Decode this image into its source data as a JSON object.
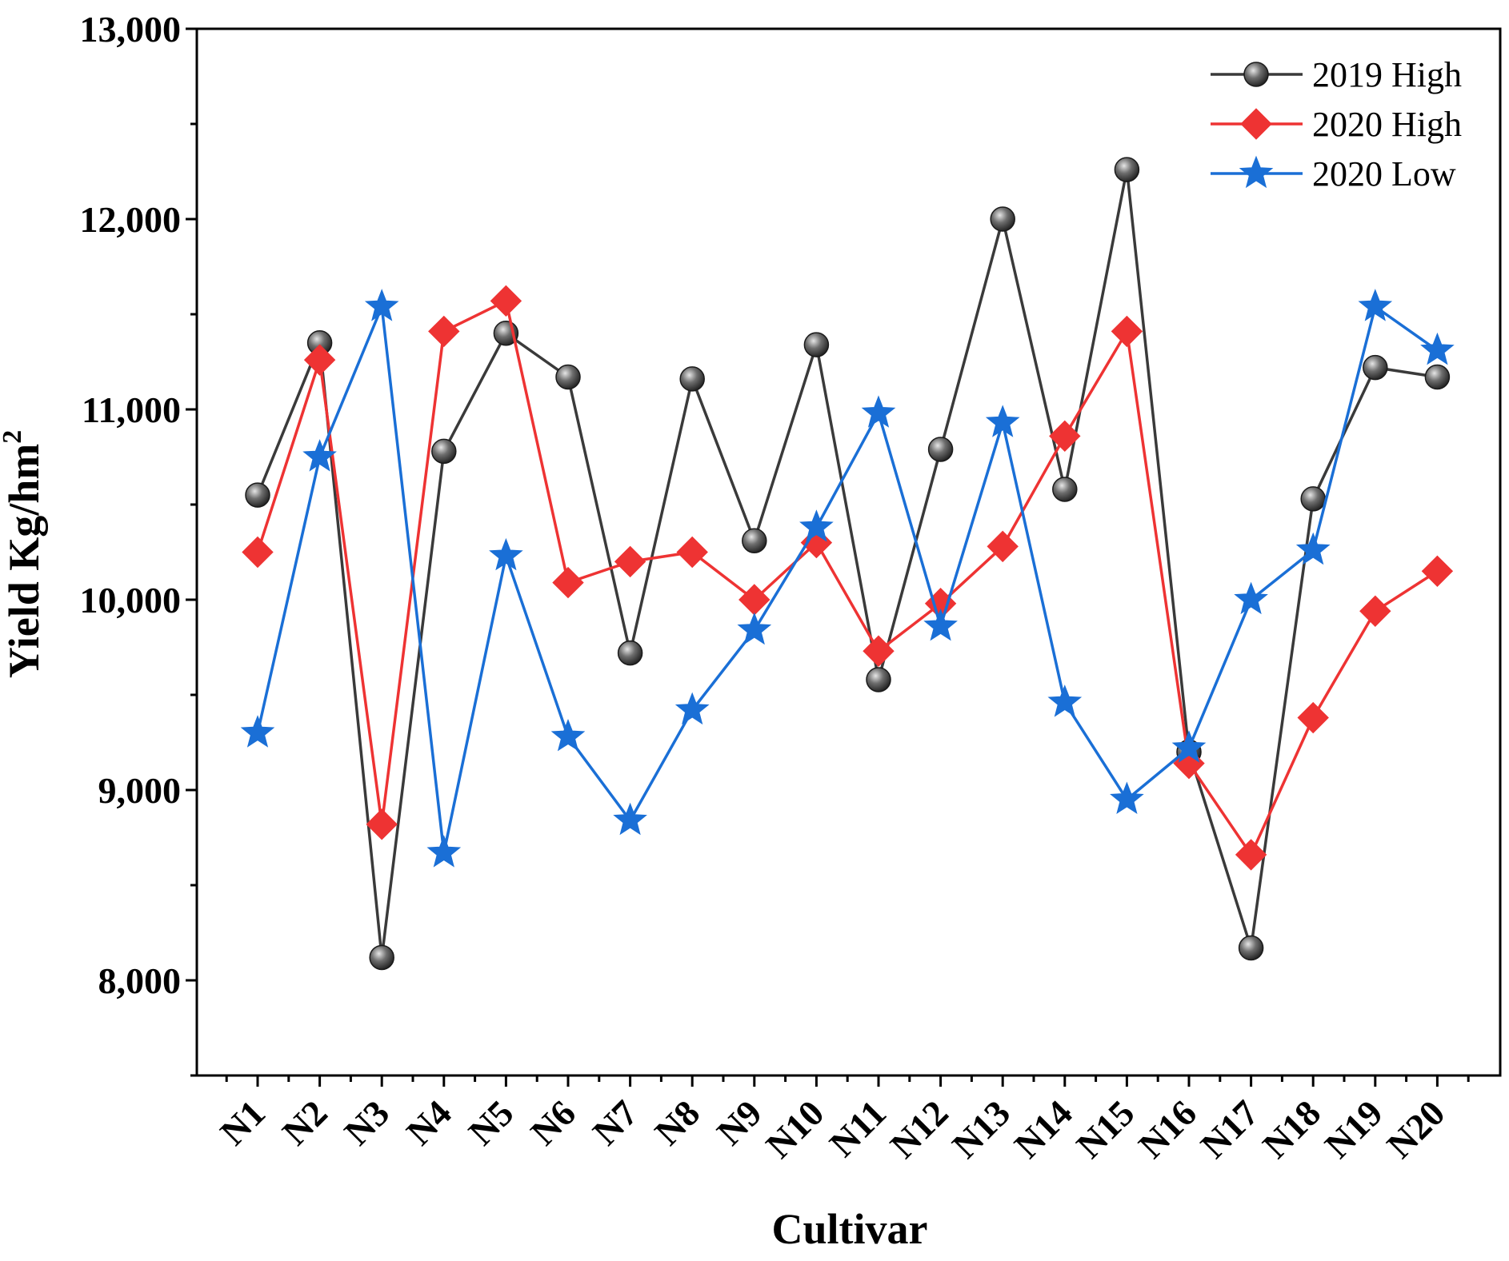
{
  "chart_data": {
    "type": "line",
    "title": "",
    "xlabel": "Cultivar",
    "ylabel_main": "Yield Kg/hm",
    "ylabel_sup": "2",
    "ylim": [
      7500,
      13000
    ],
    "yticks": [
      8000,
      9000,
      10000,
      11000,
      12000,
      13000
    ],
    "ytick_labels": [
      "8,000",
      "9,000",
      "10,000",
      "11,000",
      "12,000",
      "13,000"
    ],
    "categories": [
      "N1",
      "N2",
      "N3",
      "N4",
      "N5",
      "N6",
      "N7",
      "N8",
      "N9",
      "N10",
      "N11",
      "N12",
      "N13",
      "N14",
      "N15",
      "N16",
      "N17",
      "N18",
      "N19",
      "N20"
    ],
    "legend_position": "top-right",
    "series": [
      {
        "name": "2019 High",
        "color": "#3a3a3a",
        "marker": "circle",
        "values": [
          10550,
          11350,
          8120,
          10780,
          11400,
          11170,
          9720,
          11160,
          10310,
          11340,
          9580,
          10790,
          12000,
          10580,
          12260,
          9200,
          8170,
          10530,
          11220,
          11170
        ]
      },
      {
        "name": "2020 High",
        "color": "#ee3333",
        "marker": "diamond",
        "values": [
          10250,
          11260,
          8820,
          11410,
          11570,
          10090,
          10200,
          10250,
          10000,
          10300,
          9730,
          9980,
          10280,
          10860,
          11410,
          9140,
          8660,
          9380,
          9940,
          10150
        ]
      },
      {
        "name": "2020 Low",
        "color": "#1a6fd6",
        "marker": "star",
        "values": [
          9300,
          10750,
          11540,
          8670,
          10230,
          9280,
          8840,
          9420,
          9840,
          10380,
          10980,
          9860,
          10930,
          9460,
          8950,
          9220,
          10000,
          10260,
          11540,
          11310
        ]
      }
    ]
  }
}
